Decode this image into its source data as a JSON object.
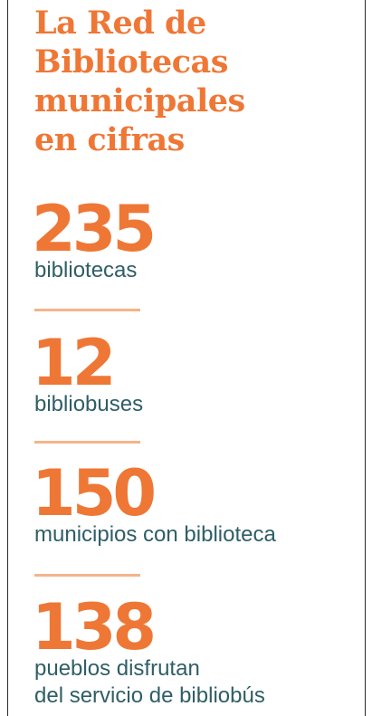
{
  "title": {
    "line1": "La Red de",
    "line2": "Bibliotecas",
    "line3": "municipales",
    "line4": "en cifras"
  },
  "stats": [
    {
      "number": "235",
      "label": "bibliotecas"
    },
    {
      "number": "12",
      "label": "bibliobuses"
    },
    {
      "number": "150",
      "label": "municipios con biblioteca"
    },
    {
      "number": "138",
      "label_line1": "pueblos disfrutan",
      "label_line2": "del servicio de bibliobús"
    }
  ],
  "colors": {
    "accent": "#ef7735",
    "divider": "#f4b48a",
    "label": "#2f5e67",
    "rule": "#2a2a2a"
  }
}
